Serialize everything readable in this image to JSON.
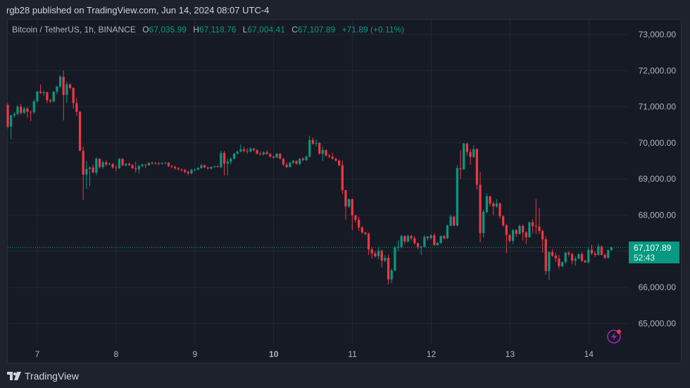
{
  "publish_line": "rgb28 published on TradingView.com, Jun 14, 2024 08:07 UTC-4",
  "legend": {
    "symbol": "Bitcoin / TetherUS, 1h, BINANCE",
    "o_label": "O",
    "o_value": "67,035.99",
    "h_label": "H",
    "h_value": "67,118.76",
    "l_label": "L",
    "l_value": "67,004.41",
    "c_label": "C",
    "c_value": "67,107.89",
    "change": "+71.89 (+0.11%)"
  },
  "current_price": {
    "price": "67,107.89",
    "countdown": "52:43"
  },
  "footer": {
    "brand": "TradingView"
  },
  "colors": {
    "up": "#089981",
    "down": "#f23645",
    "background": "#161a25",
    "grid": "#232733",
    "accent_icon": "#9c27b0"
  },
  "icons": {
    "logo": "tradingview-logo-icon",
    "alert": "lightning-icon"
  },
  "chart_data": {
    "type": "candlestick",
    "interval": "1h",
    "y_ticks": [
      "73,000.00",
      "72,000.00",
      "71,000.00",
      "70,000.00",
      "69,000.00",
      "68,000.00",
      "66,000.00",
      "65,000.00"
    ],
    "y_tick_values": [
      73000,
      72000,
      71000,
      70000,
      69000,
      68000,
      66000,
      65000
    ],
    "x_ticks": [
      "7",
      "8",
      "9",
      "10",
      "11",
      "12",
      "13",
      "14"
    ],
    "x_tick_highlight": "10",
    "ylim": [
      64500,
      73400
    ],
    "grid": true,
    "current_value": 67107.89,
    "candles_ohlc": [
      [
        71050,
        71100,
        70400,
        70450
      ],
      [
        70450,
        70780,
        70100,
        70760
      ],
      [
        70760,
        70850,
        70700,
        70800
      ],
      [
        70800,
        71050,
        70750,
        71000
      ],
      [
        71000,
        71080,
        70780,
        70830
      ],
      [
        70830,
        71000,
        70800,
        70950
      ],
      [
        70950,
        70990,
        70700,
        70860
      ],
      [
        70860,
        70900,
        70600,
        70850
      ],
      [
        70850,
        71200,
        70800,
        71150
      ],
      [
        71150,
        71440,
        71100,
        71420
      ],
      [
        71420,
        71620,
        71350,
        71380
      ],
      [
        71380,
        71450,
        71300,
        71400
      ],
      [
        71400,
        71420,
        71100,
        71180
      ],
      [
        71180,
        71220,
        71100,
        71150
      ],
      [
        71150,
        71430,
        71120,
        71420
      ],
      [
        71420,
        71580,
        71350,
        71560
      ],
      [
        71560,
        71880,
        71520,
        71830
      ],
      [
        71830,
        72000,
        70620,
        71330
      ],
      [
        71330,
        71700,
        71100,
        71620
      ],
      [
        71620,
        71650,
        71480,
        71520
      ],
      [
        71520,
        71540,
        70950,
        71100
      ],
      [
        71100,
        71250,
        70750,
        70860
      ],
      [
        70860,
        70880,
        69780,
        69780
      ],
      [
        69780,
        69900,
        68420,
        69120
      ],
      [
        69120,
        69500,
        68720,
        69280
      ],
      [
        69280,
        69350,
        68800,
        69320
      ],
      [
        69320,
        69400,
        69150,
        69180
      ],
      [
        69180,
        69600,
        69100,
        69560
      ],
      [
        69560,
        69570,
        69300,
        69330
      ],
      [
        69330,
        69500,
        69280,
        69460
      ],
      [
        69460,
        69520,
        69350,
        69400
      ],
      [
        69400,
        69450,
        69380,
        69420
      ],
      [
        69420,
        69440,
        69280,
        69320
      ],
      [
        69320,
        69380,
        69220,
        69300
      ],
      [
        69300,
        69580,
        69280,
        69560
      ],
      [
        69560,
        69570,
        69350,
        69380
      ],
      [
        69380,
        69450,
        69340,
        69420
      ],
      [
        69420,
        69460,
        69360,
        69380
      ],
      [
        69380,
        69420,
        69280,
        69300
      ],
      [
        69300,
        69480,
        69180,
        69270
      ],
      [
        69270,
        69400,
        69150,
        69360
      ],
      [
        69360,
        69430,
        69320,
        69400
      ],
      [
        69400,
        69420,
        69300,
        69380
      ],
      [
        69380,
        69470,
        69360,
        69450
      ],
      [
        69450,
        69480,
        69400,
        69430
      ],
      [
        69430,
        69470,
        69400,
        69440
      ],
      [
        69440,
        69460,
        69380,
        69420
      ],
      [
        69420,
        69460,
        69400,
        69440
      ],
      [
        69440,
        69470,
        69420,
        69450
      ],
      [
        69450,
        69470,
        69330,
        69360
      ],
      [
        69360,
        69390,
        69300,
        69340
      ],
      [
        69340,
        69360,
        69260,
        69300
      ],
      [
        69300,
        69330,
        69240,
        69270
      ],
      [
        69270,
        69290,
        69200,
        69250
      ],
      [
        69250,
        69280,
        69150,
        69200
      ],
      [
        69200,
        69230,
        69100,
        69160
      ],
      [
        69160,
        69280,
        69120,
        69260
      ],
      [
        69260,
        69290,
        69220,
        69260
      ],
      [
        69260,
        69330,
        69240,
        69300
      ],
      [
        69300,
        69420,
        69280,
        69380
      ],
      [
        69380,
        69400,
        69300,
        69320
      ],
      [
        69320,
        69350,
        69260,
        69290
      ],
      [
        69290,
        69350,
        69270,
        69330
      ],
      [
        69330,
        69370,
        69310,
        69350
      ],
      [
        69350,
        69380,
        69320,
        69330
      ],
      [
        69330,
        69780,
        69300,
        69720
      ],
      [
        69720,
        69780,
        69100,
        69430
      ],
      [
        69430,
        69560,
        69100,
        69480
      ],
      [
        69480,
        69600,
        69400,
        69560
      ],
      [
        69560,
        69720,
        69540,
        69700
      ],
      [
        69700,
        69790,
        69680,
        69760
      ],
      [
        69760,
        69960,
        69740,
        69820
      ],
      [
        69820,
        69900,
        69740,
        69780
      ],
      [
        69780,
        69850,
        69700,
        69760
      ],
      [
        69760,
        69880,
        69740,
        69840
      ],
      [
        69840,
        69860,
        69760,
        69800
      ],
      [
        69800,
        69820,
        69680,
        69700
      ],
      [
        69700,
        69760,
        69650,
        69680
      ],
      [
        69680,
        69770,
        69660,
        69740
      ],
      [
        69740,
        69800,
        69680,
        69690
      ],
      [
        69690,
        69720,
        69600,
        69620
      ],
      [
        69620,
        69650,
        69560,
        69590
      ],
      [
        69590,
        69720,
        69580,
        69700
      ],
      [
        69700,
        69710,
        69540,
        69560
      ],
      [
        69560,
        69580,
        69360,
        69400
      ],
      [
        69400,
        69460,
        69300,
        69330
      ],
      [
        69330,
        69470,
        69320,
        69450
      ],
      [
        69450,
        69530,
        69410,
        69500
      ],
      [
        69500,
        69520,
        69400,
        69420
      ],
      [
        69420,
        69580,
        69380,
        69560
      ],
      [
        69560,
        69600,
        69500,
        69520
      ],
      [
        69520,
        69650,
        69500,
        69620
      ],
      [
        69620,
        70200,
        69600,
        70080
      ],
      [
        70080,
        70150,
        69950,
        69980
      ],
      [
        69980,
        70100,
        69900,
        70000
      ],
      [
        70000,
        70020,
        69680,
        69700
      ],
      [
        69700,
        69900,
        69500,
        69800
      ],
      [
        69800,
        69820,
        69620,
        69650
      ],
      [
        69650,
        69700,
        69580,
        69620
      ],
      [
        69620,
        69720,
        69540,
        69560
      ],
      [
        69560,
        69600,
        69480,
        69510
      ],
      [
        69510,
        69540,
        69350,
        69380
      ],
      [
        69380,
        69510,
        68580,
        68690
      ],
      [
        68690,
        68700,
        67870,
        68240
      ],
      [
        68240,
        68460,
        68200,
        68440
      ],
      [
        68440,
        68460,
        67580,
        67990
      ],
      [
        67990,
        68020,
        67800,
        67870
      ],
      [
        67870,
        67950,
        67560,
        67660
      ],
      [
        67660,
        67700,
        67480,
        67520
      ],
      [
        67520,
        67540,
        67440,
        67480
      ],
      [
        67480,
        67520,
        66900,
        67050
      ],
      [
        67050,
        67100,
        66800,
        66940
      ],
      [
        66940,
        67000,
        66820,
        66860
      ],
      [
        66860,
        67100,
        66780,
        67010
      ],
      [
        67010,
        67050,
        66550,
        66740
      ],
      [
        66740,
        66900,
        66700,
        66820
      ],
      [
        66820,
        66900,
        66080,
        66220
      ],
      [
        66220,
        66520,
        66120,
        66470
      ],
      [
        66470,
        67150,
        66450,
        67100
      ],
      [
        67100,
        67300,
        67000,
        67120
      ],
      [
        67120,
        67450,
        67080,
        67420
      ],
      [
        67420,
        67440,
        67200,
        67270
      ],
      [
        67270,
        67460,
        67240,
        67420
      ],
      [
        67420,
        67460,
        67300,
        67360
      ],
      [
        67360,
        67420,
        67180,
        67220
      ],
      [
        67220,
        67240,
        67050,
        67110
      ],
      [
        67110,
        67150,
        66900,
        67120
      ],
      [
        67120,
        67450,
        67100,
        67400
      ],
      [
        67400,
        67420,
        67300,
        67360
      ],
      [
        67360,
        67480,
        67330,
        67440
      ],
      [
        67440,
        67500,
        67150,
        67170
      ],
      [
        67170,
        67260,
        67150,
        67230
      ],
      [
        67230,
        67440,
        67200,
        67420
      ],
      [
        67420,
        67450,
        67330,
        67360
      ],
      [
        67360,
        67740,
        67340,
        67710
      ],
      [
        67710,
        68020,
        67690,
        67960
      ],
      [
        67960,
        67980,
        67700,
        67710
      ],
      [
        67710,
        69380,
        67690,
        69300
      ],
      [
        69300,
        69800,
        69000,
        69270
      ],
      [
        69270,
        70000,
        69250,
        69980
      ],
      [
        69980,
        70000,
        69650,
        69750
      ],
      [
        69750,
        69830,
        69400,
        69610
      ],
      [
        69610,
        69930,
        69580,
        69830
      ],
      [
        69830,
        69850,
        68700,
        68840
      ],
      [
        68840,
        69200,
        67250,
        67500
      ],
      [
        67500,
        68150,
        67380,
        68090
      ],
      [
        68090,
        68600,
        68050,
        68520
      ],
      [
        68520,
        68540,
        68250,
        68320
      ],
      [
        68320,
        68380,
        68000,
        68240
      ],
      [
        68240,
        68440,
        68200,
        68320
      ],
      [
        68320,
        68350,
        67900,
        67970
      ],
      [
        67970,
        68000,
        67680,
        67720
      ],
      [
        67720,
        67760,
        66950,
        67450
      ],
      [
        67450,
        67480,
        67240,
        67290
      ],
      [
        67290,
        67620,
        67200,
        67580
      ],
      [
        67580,
        67620,
        67400,
        67480
      ],
      [
        67480,
        67740,
        67460,
        67700
      ],
      [
        67700,
        67740,
        67300,
        67520
      ],
      [
        67520,
        67560,
        67200,
        67390
      ],
      [
        67390,
        67820,
        67370,
        67800
      ],
      [
        67800,
        67880,
        67500,
        67700
      ],
      [
        67700,
        68440,
        67480,
        67680
      ],
      [
        67680,
        68200,
        67480,
        67560
      ],
      [
        67560,
        67600,
        66960,
        67330
      ],
      [
        67330,
        67420,
        66350,
        66450
      ],
      [
        66450,
        67000,
        66200,
        66980
      ],
      [
        66980,
        67060,
        66840,
        66880
      ],
      [
        66880,
        66960,
        66700,
        66800
      ],
      [
        66800,
        66900,
        66520,
        66590
      ],
      [
        66590,
        66710,
        66550,
        66700
      ],
      [
        66700,
        66980,
        66650,
        66960
      ],
      [
        66960,
        67000,
        66850,
        66920
      ],
      [
        66920,
        66960,
        66640,
        66740
      ],
      [
        66740,
        66860,
        66600,
        66800
      ],
      [
        66800,
        66950,
        66780,
        66920
      ],
      [
        66920,
        66980,
        66700,
        66740
      ],
      [
        66740,
        66760,
        66680,
        66690
      ],
      [
        66690,
        67100,
        66660,
        67040
      ],
      [
        67040,
        67180,
        66900,
        66940
      ],
      [
        66940,
        67000,
        66850,
        66900
      ],
      [
        66900,
        67200,
        66880,
        67130
      ],
      [
        67130,
        67160,
        66880,
        66900
      ],
      [
        66900,
        66940,
        66780,
        66820
      ],
      [
        66820,
        67040,
        66780,
        67035.99
      ],
      [
        67035.99,
        67118.76,
        67004.41,
        67107.89
      ]
    ]
  }
}
